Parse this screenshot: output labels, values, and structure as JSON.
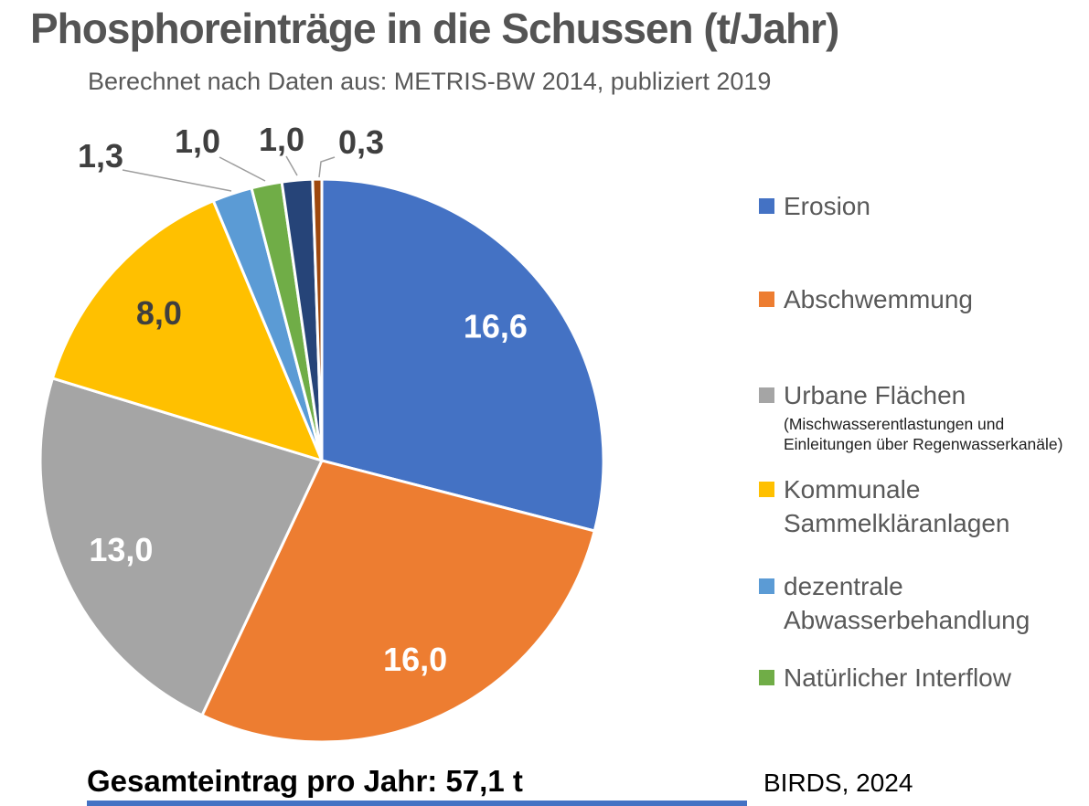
{
  "header": {
    "title": "Phosphoreinträge in die Schussen (t/Jahr)",
    "subtitle": "Berechnet nach Daten aus: METRIS-BW 2014, publiziert 2019"
  },
  "chart_data": {
    "type": "pie",
    "title": "Phosphoreinträge in die Schussen (t/Jahr)",
    "subtitle": "Berechnet nach Daten aus: METRIS-BW 2014, publiziert 2019",
    "unit": "t/Jahr",
    "total_value": 57.1,
    "total_display": "57,1 t",
    "start_angle_deg": 0,
    "direction": "clockwise",
    "legend_position": "right",
    "slices": [
      {
        "label": "Erosion",
        "value": 16.6,
        "display": "16,6",
        "color": "#4472C4",
        "label_color": "#ffffff",
        "label_placement": "inside"
      },
      {
        "label": "Abschwemmung",
        "value": 16.0,
        "display": "16,0",
        "color": "#ED7D31",
        "label_color": "#ffffff",
        "label_placement": "inside"
      },
      {
        "label": "Urbane Flächen",
        "value": 13.0,
        "display": "13,0",
        "color": "#A5A5A5",
        "label_color": "#ffffff",
        "label_placement": "inside"
      },
      {
        "label": "Kommunale Sammelkläranlagen",
        "value": 8.0,
        "display": "8,0",
        "color": "#FFC000",
        "label_color": "#3f3f3f",
        "label_placement": "inside"
      },
      {
        "label": "dezentrale Abwasserbehandlung",
        "value": 1.3,
        "display": "1,3",
        "color": "#5B9BD5",
        "label_color": "#3f3f3f",
        "label_placement": "outside"
      },
      {
        "label": "Natürlicher Interflow",
        "value": 1.0,
        "display": "1,0",
        "color": "#70AD47",
        "label_color": "#3f3f3f",
        "label_placement": "outside"
      },
      {
        "label": "",
        "value": 1.0,
        "display": "1,0",
        "color": "#264478",
        "label_color": "#3f3f3f",
        "label_placement": "outside"
      },
      {
        "label": "",
        "value": 0.3,
        "display": "0,3",
        "color": "#9E480E",
        "label_color": "#3f3f3f",
        "label_placement": "outside"
      }
    ]
  },
  "legend": {
    "items": [
      {
        "label": "Erosion",
        "color": "#4472C4"
      },
      {
        "label": "Abschwemmung",
        "color": "#ED7D31"
      },
      {
        "label": "Urbane Flächen",
        "color": "#A5A5A5",
        "note_line1": "(Mischwasserentlastungen und",
        "note_line2": "Einleitungen über Regenwasserkanäle)"
      },
      {
        "label": "Kommunale Sammelkläranlagen",
        "color": "#FFC000"
      },
      {
        "label": "dezentrale Abwasserbehandlung",
        "color": "#5B9BD5"
      },
      {
        "label": "Natürlicher Interflow",
        "color": "#70AD47"
      }
    ]
  },
  "footer": {
    "total_label": "Gesamteintrag pro Jahr: 57,1 t",
    "source": "BIRDS, 2024",
    "accent_bar_color": "#4472C4"
  }
}
